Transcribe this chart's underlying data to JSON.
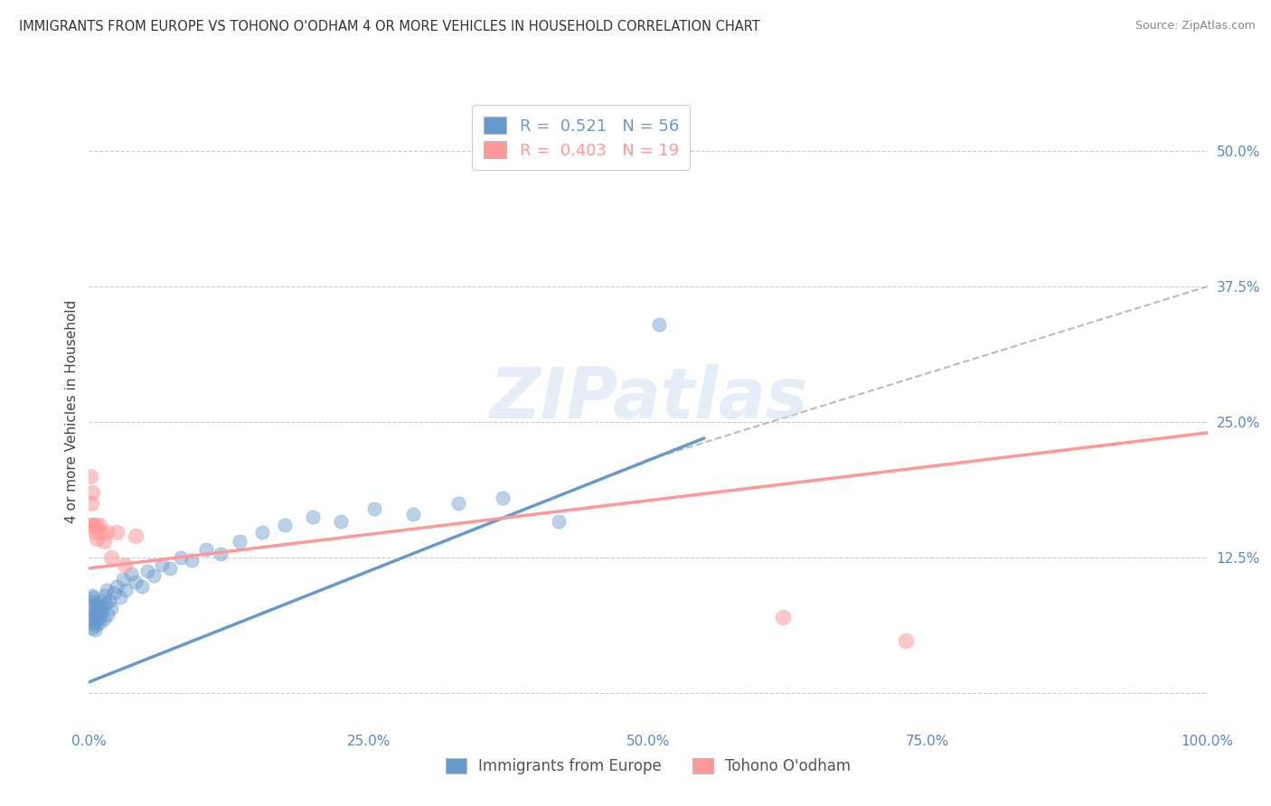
{
  "title": "IMMIGRANTS FROM EUROPE VS TOHONO O'ODHAM 4 OR MORE VEHICLES IN HOUSEHOLD CORRELATION CHART",
  "source": "Source: ZipAtlas.com",
  "ylabel": "4 or more Vehicles in Household",
  "xlim": [
    0.0,
    1.0
  ],
  "ylim": [
    -0.03,
    0.55
  ],
  "x_ticks": [
    0.0,
    0.25,
    0.5,
    0.75,
    1.0
  ],
  "x_tick_labels": [
    "0.0%",
    "25.0%",
    "50.0%",
    "75.0%",
    "100.0%"
  ],
  "y_ticks": [
    0.0,
    0.125,
    0.25,
    0.375,
    0.5
  ],
  "y_tick_labels": [
    "",
    "12.5%",
    "25.0%",
    "37.5%",
    "50.0%"
  ],
  "legend_blue_r": "0.521",
  "legend_blue_n": "56",
  "legend_pink_r": "0.403",
  "legend_pink_n": "19",
  "legend_label_blue": "Immigrants from Europe",
  "legend_label_pink": "Tohono O'odham",
  "blue_color": "#6699CC",
  "pink_color": "#FF9999",
  "watermark": "ZIPatlas",
  "blue_scatter_x": [
    0.001,
    0.001,
    0.002,
    0.002,
    0.003,
    0.003,
    0.003,
    0.004,
    0.004,
    0.005,
    0.005,
    0.006,
    0.006,
    0.007,
    0.007,
    0.008,
    0.008,
    0.009,
    0.01,
    0.01,
    0.011,
    0.012,
    0.013,
    0.014,
    0.015,
    0.016,
    0.017,
    0.018,
    0.02,
    0.022,
    0.025,
    0.028,
    0.03,
    0.033,
    0.038,
    0.042,
    0.047,
    0.052,
    0.058,
    0.065,
    0.072,
    0.082,
    0.092,
    0.105,
    0.118,
    0.135,
    0.155,
    0.175,
    0.2,
    0.225,
    0.255,
    0.29,
    0.33,
    0.37,
    0.42,
    0.51
  ],
  "blue_scatter_y": [
    0.07,
    0.08,
    0.068,
    0.085,
    0.06,
    0.072,
    0.09,
    0.065,
    0.088,
    0.058,
    0.075,
    0.082,
    0.062,
    0.078,
    0.068,
    0.072,
    0.08,
    0.065,
    0.07,
    0.085,
    0.075,
    0.08,
    0.068,
    0.09,
    0.082,
    0.095,
    0.072,
    0.085,
    0.078,
    0.092,
    0.098,
    0.088,
    0.105,
    0.095,
    0.11,
    0.102,
    0.098,
    0.112,
    0.108,
    0.118,
    0.115,
    0.125,
    0.122,
    0.132,
    0.128,
    0.14,
    0.148,
    0.155,
    0.162,
    0.158,
    0.17,
    0.165,
    0.175,
    0.18,
    0.158,
    0.34
  ],
  "pink_scatter_x": [
    0.001,
    0.001,
    0.002,
    0.003,
    0.003,
    0.004,
    0.005,
    0.006,
    0.007,
    0.009,
    0.011,
    0.013,
    0.016,
    0.02,
    0.025,
    0.032,
    0.042,
    0.62,
    0.73
  ],
  "pink_scatter_y": [
    0.2,
    0.155,
    0.175,
    0.185,
    0.155,
    0.155,
    0.148,
    0.155,
    0.142,
    0.155,
    0.148,
    0.14,
    0.148,
    0.125,
    0.148,
    0.118,
    0.145,
    0.07,
    0.048
  ],
  "blue_line_x": [
    0.0,
    0.55
  ],
  "blue_line_y": [
    0.01,
    0.235
  ],
  "pink_line_x": [
    0.0,
    1.0
  ],
  "pink_line_y": [
    0.115,
    0.24
  ],
  "dashed_line_x": [
    0.5,
    1.0
  ],
  "dashed_line_y": [
    0.215,
    0.375
  ]
}
